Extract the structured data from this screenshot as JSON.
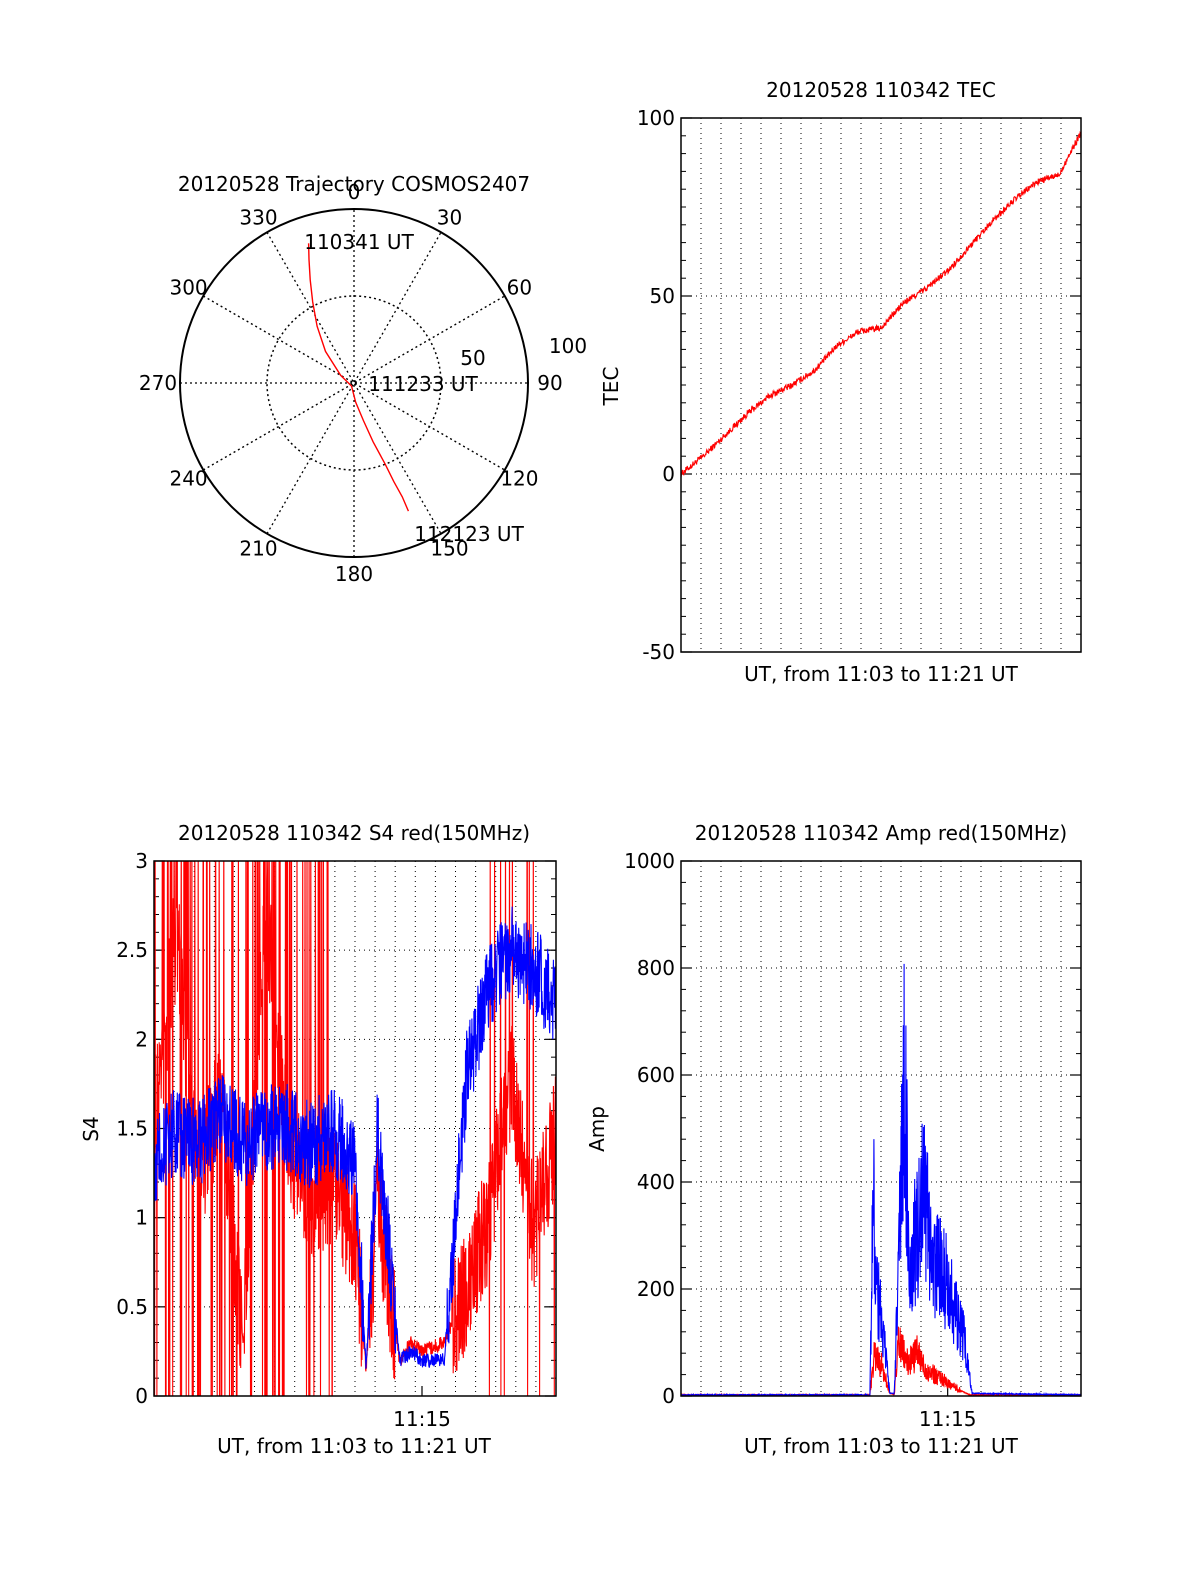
{
  "colors": {
    "series_red": "#ff0000",
    "series_blue": "#0000ff",
    "axes": "#000000"
  },
  "chart_data": [
    {
      "type": "polar",
      "title": "20120528 Trajectory COSMOS2407",
      "angle_labels": [
        "0",
        "30",
        "60",
        "90",
        "120",
        "150",
        "180",
        "210",
        "240",
        "270",
        "300",
        "330"
      ],
      "radial_labels": [
        "50",
        "100"
      ],
      "rlim": [
        0,
        100
      ],
      "grid": true,
      "annotations": {
        "start": "110341 UT",
        "middle": "111233 UT",
        "end": "112123 UT"
      },
      "series": [
        {
          "color": "#ff0000",
          "points": [
            {
              "az": 342,
              "el": 14
            },
            {
              "az": 340,
              "el": 22
            },
            {
              "az": 337,
              "el": 32
            },
            {
              "az": 333,
              "el": 43
            },
            {
              "az": 327,
              "el": 55
            },
            {
              "az": 318,
              "el": 68
            },
            {
              "az": 300,
              "el": 82
            },
            {
              "az": 220,
              "el": 88
            },
            {
              "az": 175,
              "el": 80
            },
            {
              "az": 166,
              "el": 70
            },
            {
              "az": 162,
              "el": 58
            },
            {
              "az": 159,
              "el": 45
            },
            {
              "az": 158,
              "el": 35
            },
            {
              "az": 157,
              "el": 26
            },
            {
              "az": 157,
              "el": 18
            }
          ]
        }
      ]
    },
    {
      "type": "line",
      "title": "20120528 110342 TEC",
      "xlabel": "UT, from 11:03 to 11:21 UT",
      "ylabel": "TEC",
      "xlim": [
        0,
        18
      ],
      "ylim": [
        -50,
        100
      ],
      "yticks": [
        "-50",
        "0",
        "50",
        "100"
      ],
      "x_gridlines": 20,
      "grid": true,
      "series": [
        {
          "color": "#ff0000",
          "x": [
            0,
            1,
            2,
            3,
            4,
            5,
            6,
            7,
            8,
            9,
            10,
            11,
            12,
            13,
            14,
            15,
            16,
            17,
            18
          ],
          "y": [
            0,
            5,
            11,
            17,
            22,
            25,
            29,
            36,
            40,
            41,
            48,
            52,
            57,
            64,
            71,
            77,
            82,
            84,
            96
          ]
        }
      ]
    },
    {
      "type": "line",
      "title": "20120528 110342 S4 red(150MHz)",
      "xlabel": "UT, from 11:03 to 11:21 UT",
      "ylabel": "S4",
      "xlim": [
        0,
        18
      ],
      "ylim": [
        0,
        3
      ],
      "yticks": [
        "0",
        "0.5",
        "1",
        "1.5",
        "2",
        "2.5",
        "3"
      ],
      "xticks": [
        {
          "x": 12,
          "label": "11:15"
        }
      ],
      "grid": true,
      "series": [
        {
          "color": "#ff0000",
          "x": [
            0,
            1,
            2,
            3,
            4,
            5,
            6,
            7,
            8,
            9,
            9.5,
            10,
            11,
            11.5,
            12,
            13,
            14,
            15,
            16,
            17,
            18
          ],
          "y": [
            1.5,
            2.6,
            1.2,
            1.7,
            0.3,
            2.8,
            1.4,
            1.1,
            1.2,
            0.9,
            0.15,
            1.1,
            0.2,
            0.3,
            0.25,
            0.3,
            0.6,
            1.0,
            1.8,
            0.9,
            1.5
          ]
        },
        {
          "color": "#0000ff",
          "x": [
            0,
            1,
            2,
            3,
            4,
            5,
            6,
            7,
            8,
            9,
            9.5,
            10,
            11,
            11.5,
            12,
            13,
            14,
            15,
            16,
            17,
            18
          ],
          "y": [
            1.3,
            1.5,
            1.4,
            1.6,
            1.4,
            1.5,
            1.5,
            1.4,
            1.5,
            1.3,
            0.15,
            1.5,
            0.2,
            0.25,
            0.2,
            0.2,
            1.8,
            2.3,
            2.5,
            2.4,
            2.2
          ]
        }
      ]
    },
    {
      "type": "line",
      "title": "20120528 110342 Amp red(150MHz)",
      "xlabel": "UT, from 11:03 to 11:21 UT",
      "ylabel": "Amp",
      "xlim": [
        0,
        18
      ],
      "ylim": [
        0,
        1000
      ],
      "yticks": [
        "0",
        "200",
        "400",
        "600",
        "800",
        "1000"
      ],
      "xticks": [
        {
          "x": 12,
          "label": "11:15"
        }
      ],
      "grid": true,
      "series": [
        {
          "color": "#ff0000",
          "x": [
            0,
            8.5,
            8.7,
            9.0,
            9.4,
            9.6,
            9.8,
            10.2,
            10.6,
            11.0,
            11.4,
            11.8,
            12.2,
            12.6,
            13.0,
            18
          ],
          "y": [
            2,
            2,
            80,
            60,
            5,
            3,
            100,
            60,
            80,
            50,
            40,
            30,
            20,
            10,
            2,
            2
          ]
        },
        {
          "color": "#0000ff",
          "x": [
            0,
            8.5,
            8.65,
            8.8,
            9.0,
            9.4,
            9.6,
            9.8,
            10.05,
            10.3,
            10.6,
            10.95,
            11.3,
            11.6,
            12.0,
            12.4,
            12.8,
            13.1,
            18
          ],
          "y": [
            2,
            2,
            370,
            200,
            150,
            5,
            5,
            250,
            600,
            230,
            300,
            380,
            220,
            260,
            200,
            150,
            100,
            5,
            2
          ]
        }
      ]
    }
  ]
}
